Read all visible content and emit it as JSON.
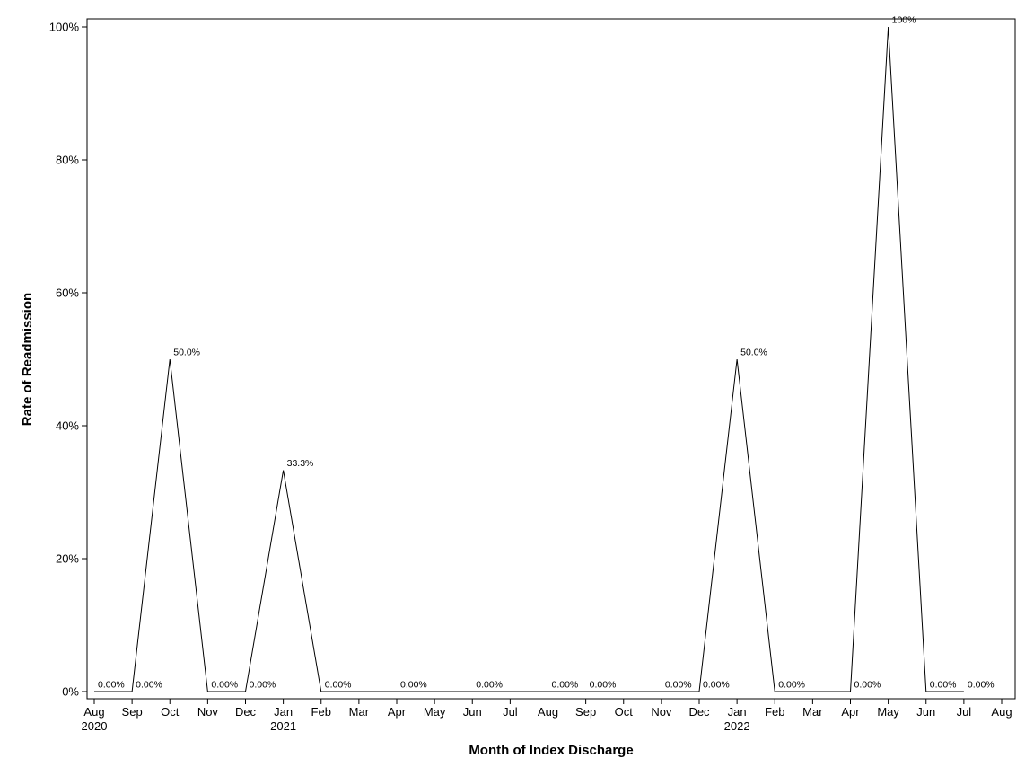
{
  "chart_data": {
    "type": "line",
    "title": "",
    "xlabel": "Month of Index Discharge",
    "ylabel": "Rate of Readmission",
    "ylim": [
      0,
      100
    ],
    "y_ticks": [
      "0%",
      "20%",
      "40%",
      "60%",
      "80%",
      "100%"
    ],
    "y_tick_values": [
      0,
      20,
      40,
      60,
      80,
      100
    ],
    "x_ticks": [
      {
        "month": "Aug",
        "year": "2020"
      },
      {
        "month": "Sep",
        "year": ""
      },
      {
        "month": "Oct",
        "year": ""
      },
      {
        "month": "Nov",
        "year": ""
      },
      {
        "month": "Dec",
        "year": ""
      },
      {
        "month": "Jan",
        "year": "2021"
      },
      {
        "month": "Feb",
        "year": ""
      },
      {
        "month": "Mar",
        "year": ""
      },
      {
        "month": "Apr",
        "year": ""
      },
      {
        "month": "May",
        "year": ""
      },
      {
        "month": "Jun",
        "year": ""
      },
      {
        "month": "Jul",
        "year": ""
      },
      {
        "month": "Aug",
        "year": ""
      },
      {
        "month": "Sep",
        "year": ""
      },
      {
        "month": "Oct",
        "year": ""
      },
      {
        "month": "Nov",
        "year": ""
      },
      {
        "month": "Dec",
        "year": ""
      },
      {
        "month": "Jan",
        "year": "2022"
      },
      {
        "month": "Feb",
        "year": ""
      },
      {
        "month": "Mar",
        "year": ""
      },
      {
        "month": "Apr",
        "year": ""
      },
      {
        "month": "May",
        "year": ""
      },
      {
        "month": "Jun",
        "year": ""
      },
      {
        "month": "Jul",
        "year": ""
      },
      {
        "month": "Aug",
        "year": ""
      }
    ],
    "grid": false,
    "series": [
      {
        "points": [
          {
            "x": "2020-08",
            "y": 0,
            "label": "0.00%"
          },
          {
            "x": "2020-09",
            "y": 0,
            "label": "0.00%"
          },
          {
            "x": "2020-10",
            "y": 50,
            "label": "50.0%"
          },
          {
            "x": "2020-11",
            "y": 0,
            "label": "0.00%"
          },
          {
            "x": "2020-12",
            "y": 0,
            "label": "0.00%"
          },
          {
            "x": "2021-01",
            "y": 33.3,
            "label": "33.3%"
          },
          {
            "x": "2021-02",
            "y": 0,
            "label": "0.00%"
          },
          {
            "x": "2021-12",
            "y": 0,
            "label": "0.00%"
          },
          {
            "x": "2022-01",
            "y": 50,
            "label": "50.0%"
          },
          {
            "x": "2022-02",
            "y": 0,
            "label": "0.00%"
          },
          {
            "x": "2022-04",
            "y": 0,
            "label": "0.00%"
          },
          {
            "x": "2022-05",
            "y": 100,
            "label": "100%"
          },
          {
            "x": "2022-06",
            "y": 0,
            "label": "0.00%"
          },
          {
            "x": "2022-07",
            "y": 0,
            "label": "0.00%"
          }
        ]
      }
    ],
    "extra_labels": [
      {
        "x": "2021-04",
        "y": 0,
        "label": "0.00%"
      },
      {
        "x": "2021-06",
        "y": 0,
        "label": "0.00%"
      },
      {
        "x": "2021-08",
        "y": 0,
        "label": "0.00%"
      },
      {
        "x": "2021-09",
        "y": 0,
        "label": "0.00%"
      },
      {
        "x": "2021-11",
        "y": 0,
        "label": "0.00%"
      }
    ]
  }
}
